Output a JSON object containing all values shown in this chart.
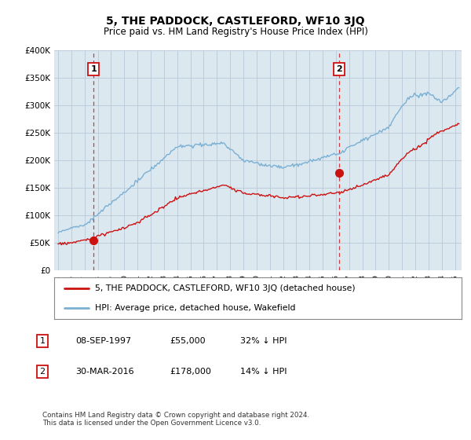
{
  "title": "5, THE PADDOCK, CASTLEFORD, WF10 3JQ",
  "subtitle": "Price paid vs. HM Land Registry's House Price Index (HPI)",
  "hpi_color": "#7ab0d4",
  "price_color": "#cc1111",
  "marker_color": "#cc1111",
  "vline_color": "#cc1111",
  "grid_color": "#b8c8d8",
  "bg_color": "#ffffff",
  "plot_bg_color": "#dce8f0",
  "ylim": [
    0,
    400000
  ],
  "yticks": [
    0,
    50000,
    100000,
    150000,
    200000,
    250000,
    300000,
    350000,
    400000
  ],
  "xlim_start": 1994.7,
  "xlim_end": 2025.5,
  "sale1_x": 1997.69,
  "sale1_y": 55000,
  "sale1_label": "1",
  "sale2_x": 2016.25,
  "sale2_y": 178000,
  "sale2_label": "2",
  "legend_price_label": "5, THE PADDOCK, CASTLEFORD, WF10 3JQ (detached house)",
  "legend_hpi_label": "HPI: Average price, detached house, Wakefield",
  "annotation1_box": "1",
  "annotation1_date": "08-SEP-1997",
  "annotation1_price": "£55,000",
  "annotation1_pct": "32% ↓ HPI",
  "annotation2_box": "2",
  "annotation2_date": "30-MAR-2016",
  "annotation2_price": "£178,000",
  "annotation2_pct": "14% ↓ HPI",
  "footer": "Contains HM Land Registry data © Crown copyright and database right 2024.\nThis data is licensed under the Open Government Licence v3.0.",
  "xticks": [
    1995,
    1996,
    1997,
    1998,
    1999,
    2000,
    2001,
    2002,
    2003,
    2004,
    2005,
    2006,
    2007,
    2008,
    2009,
    2010,
    2011,
    2012,
    2013,
    2014,
    2015,
    2016,
    2017,
    2018,
    2019,
    2020,
    2021,
    2022,
    2023,
    2024,
    2025
  ]
}
